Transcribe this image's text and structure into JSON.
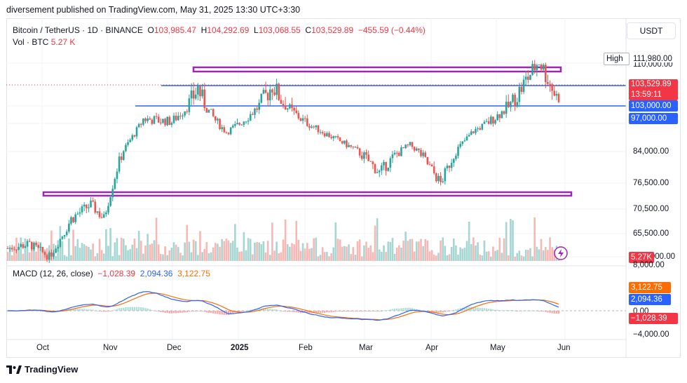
{
  "header": {
    "attribution": "diversement published on TradingView.com, May 31, 2025 13:30 UTC+3:30"
  },
  "legend": {
    "symbol": "Bitcoin / TetherUS · 1D · BINANCE",
    "o_label": "O",
    "o": "103,985.47",
    "h_label": "H",
    "h": "104,292.69",
    "l_label": "L",
    "l": "103,068.55",
    "c_label": "C",
    "c": "103,529.89",
    "change": "−455.59 (−0.44%)",
    "vol_label": "Vol · BTC",
    "vol": "5.27 K"
  },
  "macd_legend": {
    "label": "MACD (12, 26, close)",
    "hist": "−1,028.39",
    "macd": "2,094.36",
    "signal": "3,122.75"
  },
  "currency_button": "USDT",
  "price_axis": {
    "high_label": "High",
    "high_value": "111,980.00",
    "ticks": [
      "110,000.00",
      "84,000.00",
      "76,500.00",
      "70,500.00",
      "65,500.00"
    ],
    "partial_ticks": [
      "97,000.00",
      "60,000.00"
    ],
    "current_price": "103,529.89",
    "countdown": "13:59:11",
    "line_103": "103,000.00",
    "line_97": "97,000.00",
    "volume_tag": "5.27K"
  },
  "macd_axis": {
    "ticks": [
      "8,000.00",
      "0.00",
      "−4,000.00"
    ],
    "signal_tag": "3,122.75",
    "macd_tag": "2,094.36",
    "hist_tag": "−1,028.39"
  },
  "time_axis": [
    "Oct",
    "Nov",
    "Dec",
    "2025",
    "Feb",
    "Mar",
    "Apr",
    "May",
    "Jun"
  ],
  "footer": {
    "brand": "TradingView"
  },
  "colors": {
    "up": "#26a69a",
    "down": "#ef5350",
    "hline": "#2962ff",
    "box": "#9c27b0",
    "macd": "#2962ff",
    "signal": "#ff6d00"
  },
  "chart_data": {
    "type": "candlestick",
    "symbol": "BTCUSDT",
    "interval": "1D",
    "x_start": "2024-09-21",
    "x_end": "2025-05-31",
    "last_close": 103529.89,
    "period_high": 111980,
    "levels": [
      103000,
      97000
    ],
    "zones": [
      [
        103000,
        110500
      ],
      [
        74000,
        75000
      ]
    ],
    "close_anchors": [
      {
        "date": "2024-09-21",
        "price": 62000
      },
      {
        "date": "2024-10-01",
        "price": 63000
      },
      {
        "date": "2024-10-10",
        "price": 60000
      },
      {
        "date": "2024-10-20",
        "price": 68500
      },
      {
        "date": "2024-10-29",
        "price": 71500
      },
      {
        "date": "2024-11-04",
        "price": 68500
      },
      {
        "date": "2024-11-10",
        "price": 80000
      },
      {
        "date": "2024-11-22",
        "price": 98500
      },
      {
        "date": "2024-12-05",
        "price": 97500
      },
      {
        "date": "2024-12-17",
        "price": 106000
      },
      {
        "date": "2024-12-30",
        "price": 93000
      },
      {
        "date": "2025-01-20",
        "price": 106500
      },
      {
        "date": "2025-02-03",
        "price": 98000
      },
      {
        "date": "2025-02-25",
        "price": 86000
      },
      {
        "date": "2025-03-10",
        "price": 79000
      },
      {
        "date": "2025-03-24",
        "price": 87000
      },
      {
        "date": "2025-04-07",
        "price": 76500
      },
      {
        "date": "2025-04-22",
        "price": 93500
      },
      {
        "date": "2025-05-09",
        "price": 103000
      },
      {
        "date": "2025-05-22",
        "price": 111000
      },
      {
        "date": "2025-05-31",
        "price": 103529.89
      }
    ]
  }
}
